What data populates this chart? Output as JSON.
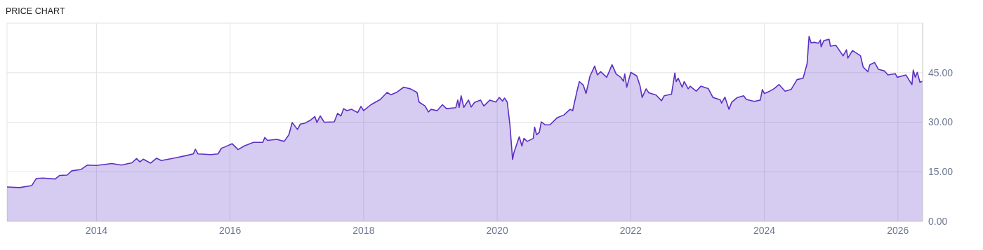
{
  "chart_data": {
    "type": "area",
    "title": "PRICE CHART",
    "x": [
      2012.66,
      2012.85,
      2013.03,
      2013.1,
      2013.2,
      2013.38,
      2013.45,
      2013.56,
      2013.63,
      2013.77,
      2013.86,
      2014.0,
      2014.23,
      2014.37,
      2014.53,
      2014.6,
      2014.65,
      2014.7,
      2014.81,
      2014.9,
      2014.97,
      2015.15,
      2015.32,
      2015.45,
      2015.48,
      2015.52,
      2015.71,
      2015.82,
      2015.87,
      2015.92,
      2016.03,
      2016.12,
      2016.21,
      2016.35,
      2016.49,
      2016.52,
      2016.56,
      2016.7,
      2016.81,
      2016.88,
      2016.93,
      2017.01,
      2017.05,
      2017.12,
      2017.21,
      2017.27,
      2017.3,
      2017.35,
      2017.41,
      2017.56,
      2017.61,
      2017.66,
      2017.7,
      2017.75,
      2017.82,
      2017.91,
      2017.96,
      2018.0,
      2018.11,
      2018.25,
      2018.35,
      2018.41,
      2018.49,
      2018.6,
      2018.7,
      2018.8,
      2018.83,
      2018.92,
      2018.97,
      2019.01,
      2019.1,
      2019.18,
      2019.24,
      2019.38,
      2019.41,
      2019.43,
      2019.46,
      2019.5,
      2019.57,
      2019.61,
      2019.66,
      2019.75,
      2019.8,
      2019.89,
      2019.98,
      2020.03,
      2020.08,
      2020.11,
      2020.15,
      2020.19,
      2020.23,
      2020.25,
      2020.33,
      2020.37,
      2020.4,
      2020.45,
      2020.54,
      2020.56,
      2020.59,
      2020.63,
      2020.66,
      2020.72,
      2020.79,
      2020.9,
      2021.0,
      2021.09,
      2021.13,
      2021.19,
      2021.23,
      2021.29,
      2021.33,
      2021.39,
      2021.46,
      2021.5,
      2021.55,
      2021.64,
      2021.72,
      2021.78,
      2021.85,
      2021.89,
      2021.91,
      2021.94,
      2022.0,
      2022.09,
      2022.14,
      2022.17,
      2022.23,
      2022.27,
      2022.38,
      2022.46,
      2022.5,
      2022.61,
      2022.66,
      2022.68,
      2022.71,
      2022.77,
      2022.8,
      2022.86,
      2022.89,
      2022.98,
      2023.05,
      2023.16,
      2023.23,
      2023.34,
      2023.36,
      2023.41,
      2023.47,
      2023.51,
      2023.59,
      2023.69,
      2023.73,
      2023.85,
      2023.94,
      2023.97,
      2024.0,
      2024.08,
      2024.15,
      2024.22,
      2024.31,
      2024.4,
      2024.49,
      2024.58,
      2024.64,
      2024.67,
      2024.7,
      2024.75,
      2024.81,
      2024.84,
      2024.85,
      2024.89,
      2024.97,
      2024.99,
      2025.07,
      2025.18,
      2025.23,
      2025.25,
      2025.32,
      2025.44,
      2025.48,
      2025.55,
      2025.58,
      2025.65,
      2025.71,
      2025.8,
      2025.85,
      2025.96,
      2025.99,
      2026.12,
      2026.21,
      2026.23,
      2026.26,
      2026.29,
      2026.33,
      2026.37
    ],
    "series": [
      {
        "color": "#5c2fc2",
        "values": [
          10.4,
          10.2,
          10.8,
          13.0,
          13.1,
          12.8,
          13.9,
          14.0,
          15.3,
          15.7,
          17.0,
          16.9,
          17.5,
          17.0,
          17.7,
          19.0,
          18.0,
          18.8,
          17.6,
          19.1,
          18.4,
          19.1,
          19.8,
          20.4,
          21.8,
          20.4,
          20.2,
          20.4,
          22.1,
          22.5,
          23.5,
          21.7,
          22.8,
          23.9,
          23.9,
          25.4,
          24.5,
          24.8,
          24.2,
          26.2,
          29.9,
          27.8,
          29.4,
          29.7,
          30.7,
          31.7,
          29.9,
          31.9,
          30.0,
          30.1,
          32.7,
          31.9,
          34.1,
          33.5,
          33.9,
          32.9,
          34.8,
          33.5,
          35.3,
          36.9,
          39.0,
          38.3,
          39.0,
          40.6,
          40.1,
          39.0,
          36.1,
          34.9,
          33.1,
          33.9,
          33.5,
          35.3,
          34.1,
          34.4,
          36.7,
          34.5,
          38.0,
          34.5,
          36.7,
          34.6,
          36.0,
          36.7,
          34.9,
          36.7,
          36.1,
          37.5,
          36.4,
          37.3,
          36.1,
          29.3,
          18.7,
          20.8,
          25.6,
          22.8,
          25.1,
          24.2,
          25.1,
          28.5,
          26.2,
          26.9,
          30.1,
          29.2,
          29.2,
          31.4,
          32.2,
          33.9,
          33.5,
          39.0,
          42.3,
          41.2,
          38.7,
          44.0,
          47.0,
          44.3,
          45.3,
          43.6,
          47.4,
          44.6,
          43.6,
          42.4,
          44.6,
          40.6,
          45.1,
          44.0,
          40.9,
          37.5,
          40.1,
          38.9,
          38.2,
          36.5,
          38.0,
          38.5,
          44.9,
          42.3,
          43.3,
          40.6,
          42.3,
          40.1,
          40.9,
          39.4,
          40.9,
          40.2,
          37.5,
          36.8,
          35.8,
          37.6,
          33.9,
          36.0,
          37.4,
          38.0,
          36.9,
          36.3,
          36.7,
          39.9,
          38.7,
          39.4,
          40.2,
          41.4,
          39.4,
          39.9,
          42.9,
          43.3,
          47.7,
          56.0,
          54.0,
          54.2,
          53.9,
          54.9,
          52.8,
          54.7,
          55.1,
          53.0,
          53.3,
          50.1,
          51.9,
          49.4,
          51.7,
          50.1,
          46.7,
          45.3,
          47.4,
          48.1,
          46.0,
          45.5,
          44.3,
          44.7,
          43.6,
          44.3,
          41.4,
          45.8,
          43.6,
          45.1,
          42.1,
          42.4
        ]
      }
    ],
    "xlim": [
      2012.66,
      2026.37
    ],
    "xticks": [
      2014,
      2016,
      2018,
      2020,
      2022,
      2024,
      2026
    ],
    "ylim": [
      0,
      60
    ],
    "yticks": [
      {
        "value": 0,
        "label": "0.00"
      },
      {
        "value": 15,
        "label": "15.00"
      },
      {
        "value": 30,
        "label": "30.00"
      },
      {
        "value": 45,
        "label": "45.00"
      }
    ],
    "grid": true
  }
}
